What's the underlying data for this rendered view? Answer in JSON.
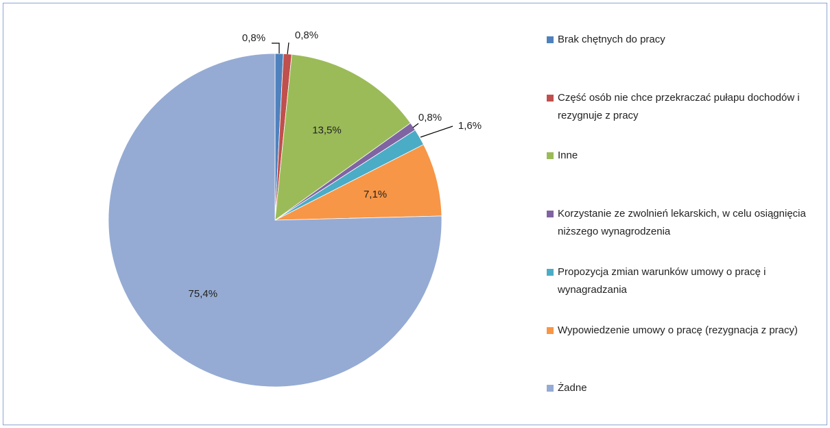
{
  "chart_data": {
    "type": "pie",
    "categories": [
      "Brak chętnych do pracy",
      "Część osób nie chce przekraczać pułapu dochodów i rezygnuje z pracy",
      "Inne",
      "Korzystanie ze zwolnień lekarskich, w celu osiągnięcia  niższego wynagrodzenia",
      "Propozycja zmian warunków umowy o pracę i wynagradzania",
      "Wypowiedzenie umowy o pracę (rezygnacja z pracy)",
      "Żadne"
    ],
    "values": [
      0.8,
      0.8,
      13.5,
      0.8,
      1.6,
      7.1,
      75.4
    ],
    "value_labels": [
      "0,8%",
      "0,8%",
      "13,5%",
      "0,8%",
      "1,6%",
      "7,1%",
      "75,4%"
    ],
    "colors": [
      "#4f81bd",
      "#c0504d",
      "#9bbb59",
      "#8064a2",
      "#4bacc6",
      "#f79646",
      "#95abd3"
    ],
    "legend": "right"
  }
}
